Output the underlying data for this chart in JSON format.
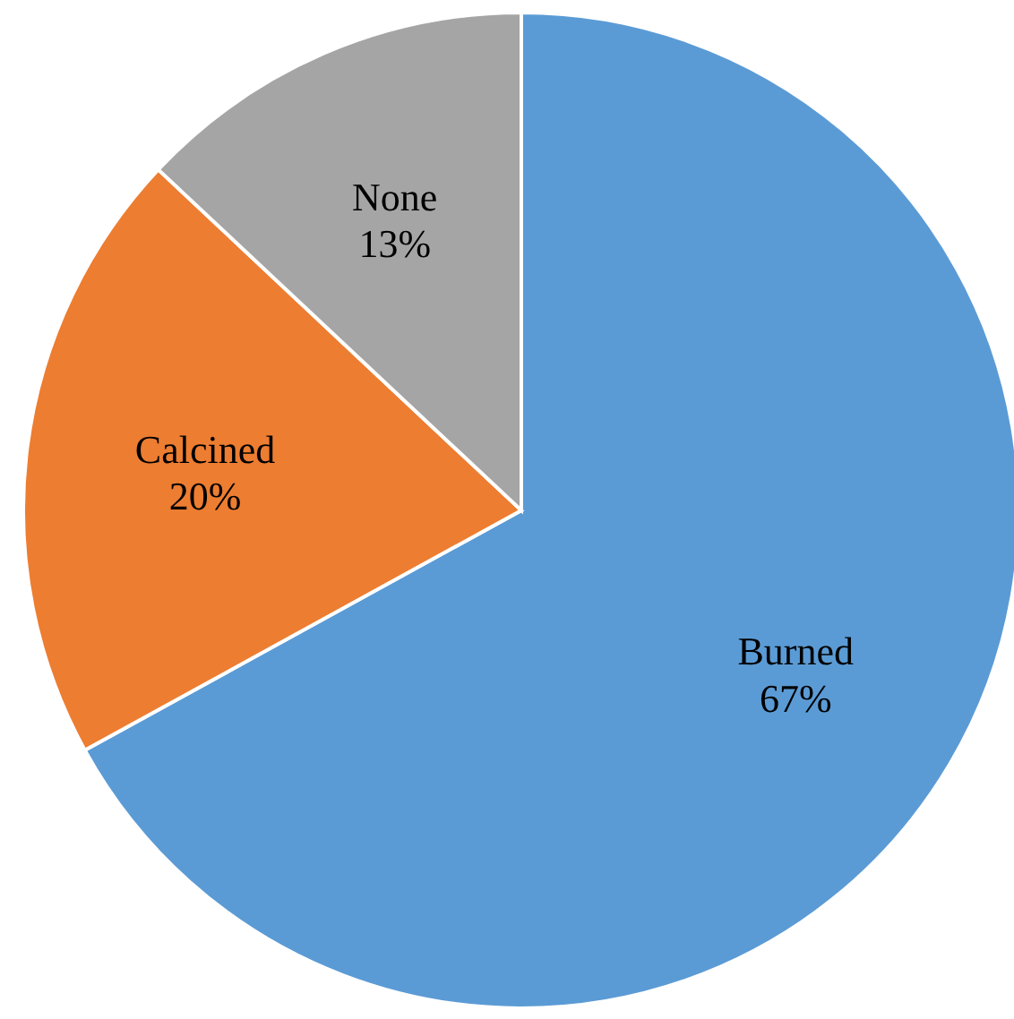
{
  "chart_data": {
    "type": "pie",
    "categories": [
      "Burned",
      "Calcined",
      "None"
    ],
    "values": [
      67,
      20,
      13
    ],
    "colors": [
      "#5b9bd5",
      "#ed7d31",
      "#a5a5a5"
    ],
    "value_labels": [
      "67%",
      "20%",
      "13%"
    ],
    "legend": false
  }
}
